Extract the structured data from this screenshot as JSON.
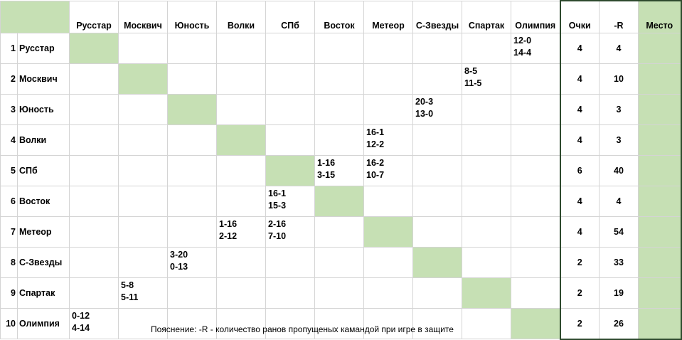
{
  "header": {
    "columns": [
      "Русстар",
      "Москвич",
      "Юность",
      "Волки",
      "СПб",
      "Восток",
      "Метеор",
      "С-Звезды",
      "Спартак",
      "Олимпия"
    ],
    "points_label": "Очки",
    "runs_label": "-R",
    "place_label": "Место"
  },
  "rows": [
    {
      "num": "1",
      "team": "Русстар",
      "scores": [
        "",
        "",
        "",
        "",
        "",
        "",
        "",
        "",
        "",
        "12-0\n14-4"
      ],
      "points": "4",
      "runs": "4",
      "place": ""
    },
    {
      "num": "2",
      "team": "Москвич",
      "scores": [
        "",
        "",
        "",
        "",
        "",
        "",
        "",
        "",
        "8-5\n11-5",
        ""
      ],
      "points": "4",
      "runs": "10",
      "place": ""
    },
    {
      "num": "3",
      "team": "Юность",
      "scores": [
        "",
        "",
        "",
        "",
        "",
        "",
        "",
        "20-3\n13-0",
        "",
        ""
      ],
      "points": "4",
      "runs": "3",
      "place": ""
    },
    {
      "num": "4",
      "team": "Волки",
      "scores": [
        "",
        "",
        "",
        "",
        "",
        "",
        "16-1\n12-2",
        "",
        "",
        ""
      ],
      "points": "4",
      "runs": "3",
      "place": ""
    },
    {
      "num": "5",
      "team": "СПб",
      "scores": [
        "",
        "",
        "",
        "",
        "",
        "1-16\n3-15",
        "16-2\n10-7",
        "",
        "",
        ""
      ],
      "points": "6",
      "runs": "40",
      "place": ""
    },
    {
      "num": "6",
      "team": "Восток",
      "scores": [
        "",
        "",
        "",
        "",
        "16-1\n15-3",
        "",
        "",
        "",
        "",
        ""
      ],
      "points": "4",
      "runs": "4",
      "place": ""
    },
    {
      "num": "7",
      "team": "Метеор",
      "scores": [
        "",
        "",
        "",
        "1-16\n2-12",
        "2-16\n7-10",
        "",
        "",
        "",
        "",
        ""
      ],
      "points": "4",
      "runs": "54",
      "place": ""
    },
    {
      "num": "8",
      "team": "С-Звезды",
      "scores": [
        "",
        "",
        "3-20\n0-13",
        "",
        "",
        "",
        "",
        "",
        "",
        ""
      ],
      "points": "2",
      "runs": "33",
      "place": ""
    },
    {
      "num": "9",
      "team": "Спартак",
      "scores": [
        "",
        "5-8\n5-11",
        "",
        "",
        "",
        "",
        "",
        "",
        "",
        ""
      ],
      "points": "2",
      "runs": "19",
      "place": ""
    },
    {
      "num": "10",
      "team": "Олимпия",
      "scores": [
        "0-12\n4-14",
        "",
        "",
        "",
        "",
        "",
        "",
        "",
        "",
        ""
      ],
      "points": "2",
      "runs": "26",
      "place": ""
    }
  ],
  "footnote": "Пояснение: -R - количество ранов пропущеных камандой при игре в защите",
  "colors": {
    "diagonal": "#c6e0b4",
    "thick_border": "#2e4a2e",
    "grid_line": "#d4d4d4"
  }
}
